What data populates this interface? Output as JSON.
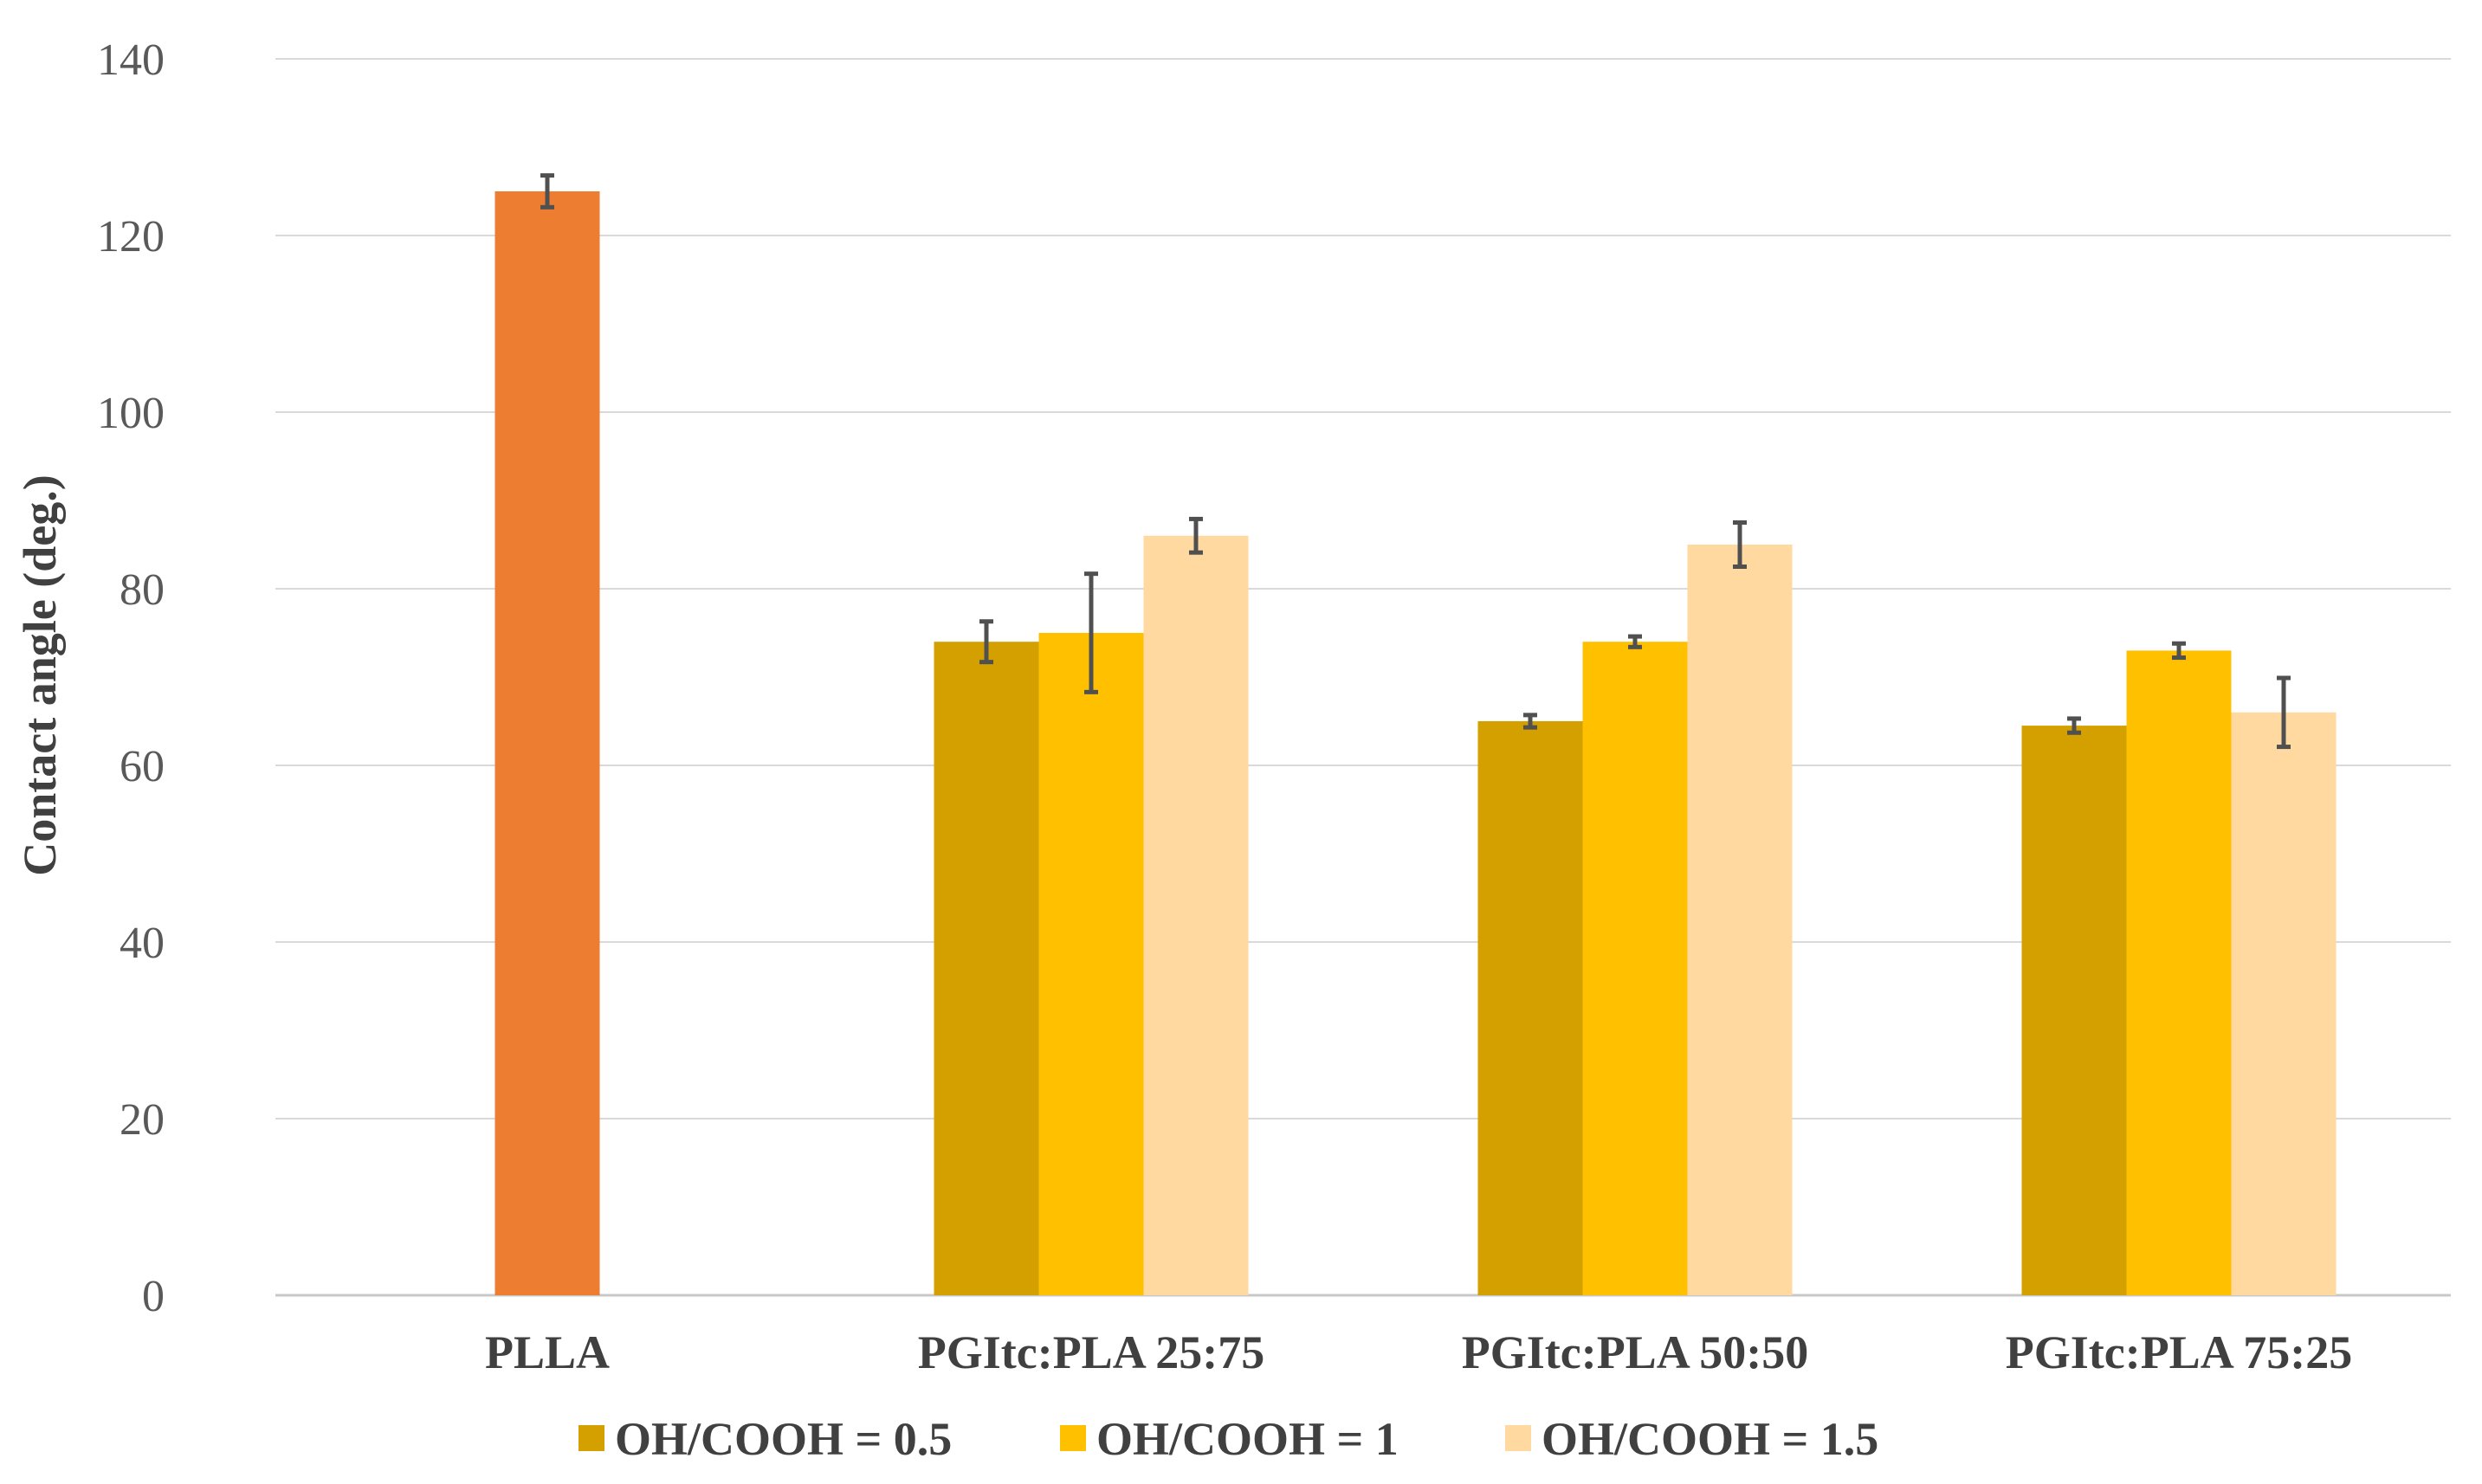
{
  "chart_data": {
    "type": "bar",
    "title": "",
    "xlabel": "",
    "ylabel": "Contact angle (deg.)",
    "ylim": [
      0,
      140
    ],
    "yticks": [
      0,
      20,
      40,
      60,
      80,
      100,
      120,
      140
    ],
    "grid": true,
    "legend_position": "bottom",
    "categories": [
      "PLLA",
      "PGItc:PLA 25:75",
      "PGItc:PLA 50:50",
      "PGItc:PLA 75:25"
    ],
    "plla_bar": {
      "value": 125,
      "error": 1.8,
      "color": "#ED7D31"
    },
    "series": [
      {
        "name": "OH/COOH = 0.5",
        "color": "#D4A000",
        "values": [
          null,
          74,
          65,
          64.5
        ],
        "errors": [
          null,
          2.3,
          0.7,
          0.8
        ]
      },
      {
        "name": "OH/COOH = 1",
        "color": "#FFC000",
        "values": [
          null,
          75,
          74,
          73
        ],
        "errors": [
          null,
          6.7,
          0.6,
          0.8
        ]
      },
      {
        "name": "OH/COOH = 1.5",
        "color": "#FFD9A0",
        "values": [
          null,
          86,
          85,
          66
        ],
        "errors": [
          null,
          1.9,
          2.5,
          3.9
        ]
      }
    ]
  }
}
